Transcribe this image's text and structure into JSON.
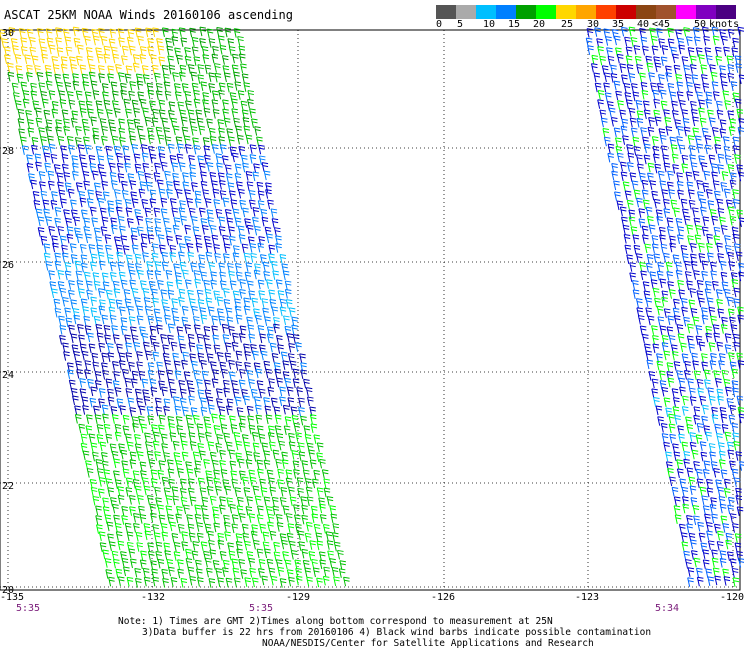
{
  "header": {
    "title": "ASCAT 25KM NOAA Winds 20160106 ascending"
  },
  "legend": {
    "colors": [
      "#555555",
      "#aaaaaa",
      "#00bfff",
      "#0080ff",
      "#00a000",
      "#00ff00",
      "#ffd700",
      "#ffa500",
      "#ff4000",
      "#cc0000",
      "#8b4513",
      "#a0522d",
      "#ff00ff",
      "#8000c0",
      "#4b0082"
    ],
    "labels": [
      "0",
      "5",
      "10",
      "15",
      "20",
      "25",
      "30",
      "35",
      "40",
      "<45",
      "50",
      "knots"
    ]
  },
  "axes": {
    "x_ticks": [
      "-135",
      "-132",
      "-129",
      "-126",
      "-123",
      "-120"
    ],
    "y_ticks": [
      "30",
      "28",
      "26",
      "24",
      "22",
      "20"
    ]
  },
  "swath_times": [
    "5:35",
    "5:35",
    "5:34"
  ],
  "notes": {
    "line1": "Note: 1) Times are GMT 2)Times along bottom correspond to measurement at 25N",
    "line2": "3)Data buffer is 22 hrs from 20160106 4) Black wind barbs indicate possible contamination",
    "line3": "NOAA/NESDIS/Center for Satellite Applications and Research"
  }
}
